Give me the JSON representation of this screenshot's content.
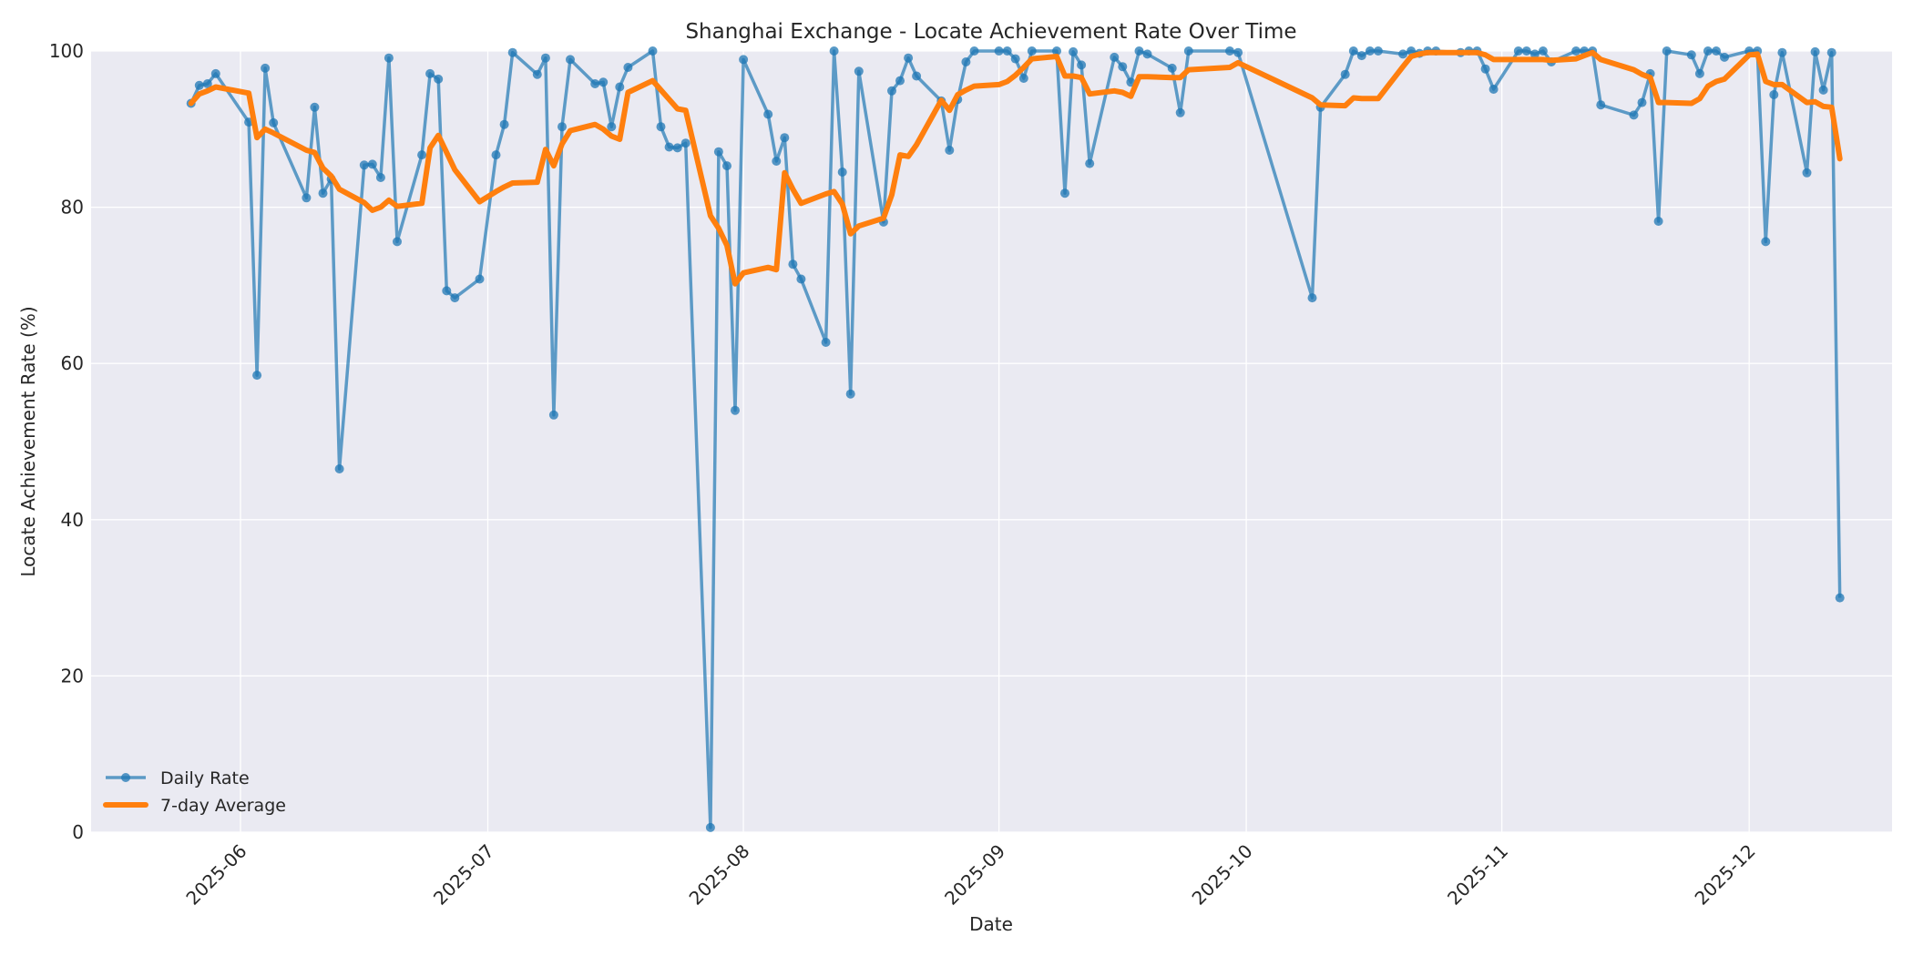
{
  "chart_data": {
    "type": "line",
    "title": "Shanghai Exchange - Locate Achievement Rate Over Time",
    "xlabel": "Date",
    "ylabel": "Locate Achievement Rate (%)",
    "ylim": [
      0,
      100
    ],
    "yticks": [
      0,
      20,
      40,
      60,
      80,
      100
    ],
    "xticks": [
      "2025-06",
      "2025-07",
      "2025-08",
      "2025-09",
      "2025-10",
      "2025-11",
      "2025-12"
    ],
    "grid": true,
    "legend_position": "lower left",
    "colors": {
      "daily": "#1f77b4",
      "avg": "#ff7f0e",
      "plot_bg": "#eaeaf2",
      "grid": "#ffffff"
    },
    "series": [
      {
        "name": "Daily Rate",
        "marker": "circle",
        "points": [
          [
            "2025-05-26",
            93.3
          ],
          [
            "2025-05-27",
            95.6
          ],
          [
            "2025-05-28",
            95.8
          ],
          [
            "2025-05-29",
            97.1
          ],
          [
            "2025-06-02",
            90.9
          ],
          [
            "2025-06-03",
            58.5
          ],
          [
            "2025-06-04",
            97.8
          ],
          [
            "2025-06-05",
            90.8
          ],
          [
            "2025-06-09",
            81.2
          ],
          [
            "2025-06-10",
            92.8
          ],
          [
            "2025-06-11",
            81.8
          ],
          [
            "2025-06-12",
            83.6
          ],
          [
            "2025-06-13",
            46.5
          ],
          [
            "2025-06-16",
            85.4
          ],
          [
            "2025-06-17",
            85.5
          ],
          [
            "2025-06-18",
            83.8
          ],
          [
            "2025-06-19",
            99.1
          ],
          [
            "2025-06-20",
            75.6
          ],
          [
            "2025-06-23",
            86.7
          ],
          [
            "2025-06-24",
            97.1
          ],
          [
            "2025-06-25",
            96.4
          ],
          [
            "2025-06-26",
            69.3
          ],
          [
            "2025-06-27",
            68.4
          ],
          [
            "2025-06-30",
            70.8
          ],
          [
            "2025-07-02",
            86.7
          ],
          [
            "2025-07-03",
            90.6
          ],
          [
            "2025-07-04",
            99.8
          ],
          [
            "2025-07-07",
            97.0
          ],
          [
            "2025-07-08",
            99.1
          ],
          [
            "2025-07-09",
            53.4
          ],
          [
            "2025-07-10",
            90.3
          ],
          [
            "2025-07-11",
            98.9
          ],
          [
            "2025-07-14",
            95.8
          ],
          [
            "2025-07-15",
            96.0
          ],
          [
            "2025-07-16",
            90.3
          ],
          [
            "2025-07-17",
            95.4
          ],
          [
            "2025-07-18",
            97.9
          ],
          [
            "2025-07-21",
            100.0
          ],
          [
            "2025-07-22",
            90.3
          ],
          [
            "2025-07-23",
            87.7
          ],
          [
            "2025-07-24",
            87.6
          ],
          [
            "2025-07-25",
            88.2
          ],
          [
            "2025-07-28",
            0.6
          ],
          [
            "2025-07-29",
            87.1
          ],
          [
            "2025-07-30",
            85.3
          ],
          [
            "2025-07-31",
            54.0
          ],
          [
            "2025-08-01",
            98.9
          ],
          [
            "2025-08-04",
            91.9
          ],
          [
            "2025-08-05",
            85.9
          ],
          [
            "2025-08-06",
            88.9
          ],
          [
            "2025-08-07",
            72.7
          ],
          [
            "2025-08-08",
            70.8
          ],
          [
            "2025-08-11",
            62.7
          ],
          [
            "2025-08-12",
            100.0
          ],
          [
            "2025-08-13",
            84.5
          ],
          [
            "2025-08-14",
            56.1
          ],
          [
            "2025-08-15",
            97.4
          ],
          [
            "2025-08-18",
            78.1
          ],
          [
            "2025-08-19",
            94.9
          ],
          [
            "2025-08-20",
            96.2
          ],
          [
            "2025-08-21",
            99.1
          ],
          [
            "2025-08-22",
            96.8
          ],
          [
            "2025-08-25",
            93.6
          ],
          [
            "2025-08-26",
            87.3
          ],
          [
            "2025-08-27",
            93.8
          ],
          [
            "2025-08-28",
            98.6
          ],
          [
            "2025-08-29",
            100.0
          ],
          [
            "2025-09-01",
            100.0
          ],
          [
            "2025-09-02",
            100.0
          ],
          [
            "2025-09-03",
            99.0
          ],
          [
            "2025-09-04",
            96.5
          ],
          [
            "2025-09-05",
            100.0
          ],
          [
            "2025-09-08",
            100.0
          ],
          [
            "2025-09-09",
            81.8
          ],
          [
            "2025-09-10",
            99.9
          ],
          [
            "2025-09-11",
            98.2
          ],
          [
            "2025-09-12",
            85.6
          ],
          [
            "2025-09-15",
            99.2
          ],
          [
            "2025-09-16",
            98.0
          ],
          [
            "2025-09-17",
            96.0
          ],
          [
            "2025-09-18",
            100.0
          ],
          [
            "2025-09-19",
            99.6
          ],
          [
            "2025-09-22",
            97.8
          ],
          [
            "2025-09-23",
            92.1
          ],
          [
            "2025-09-24",
            100.0
          ],
          [
            "2025-09-29",
            100.0
          ],
          [
            "2025-09-30",
            99.8
          ],
          [
            "2025-10-09",
            68.4
          ],
          [
            "2025-10-10",
            92.8
          ],
          [
            "2025-10-13",
            97.0
          ],
          [
            "2025-10-14",
            100.0
          ],
          [
            "2025-10-15",
            99.4
          ],
          [
            "2025-10-16",
            100.0
          ],
          [
            "2025-10-17",
            100.0
          ],
          [
            "2025-10-20",
            99.6
          ],
          [
            "2025-10-21",
            100.0
          ],
          [
            "2025-10-22",
            99.7
          ],
          [
            "2025-10-23",
            100.0
          ],
          [
            "2025-10-24",
            100.0
          ],
          [
            "2025-10-27",
            99.8
          ],
          [
            "2025-10-28",
            100.0
          ],
          [
            "2025-10-29",
            100.0
          ],
          [
            "2025-10-30",
            97.7
          ],
          [
            "2025-10-31",
            95.1
          ],
          [
            "2025-11-03",
            100.0
          ],
          [
            "2025-11-04",
            100.0
          ],
          [
            "2025-11-05",
            99.6
          ],
          [
            "2025-11-06",
            100.0
          ],
          [
            "2025-11-07",
            98.6
          ],
          [
            "2025-11-10",
            100.0
          ],
          [
            "2025-11-11",
            100.0
          ],
          [
            "2025-11-12",
            100.0
          ],
          [
            "2025-11-13",
            93.1
          ],
          [
            "2025-11-17",
            91.8
          ],
          [
            "2025-11-18",
            93.4
          ],
          [
            "2025-11-19",
            97.1
          ],
          [
            "2025-11-20",
            78.2
          ],
          [
            "2025-11-21",
            100.0
          ],
          [
            "2025-11-24",
            99.5
          ],
          [
            "2025-11-25",
            97.1
          ],
          [
            "2025-11-26",
            100.0
          ],
          [
            "2025-11-27",
            100.0
          ],
          [
            "2025-11-28",
            99.2
          ],
          [
            "2025-12-01",
            100.0
          ],
          [
            "2025-12-02",
            100.0
          ],
          [
            "2025-12-03",
            75.6
          ],
          [
            "2025-12-04",
            94.4
          ],
          [
            "2025-12-05",
            99.8
          ],
          [
            "2025-12-08",
            84.4
          ],
          [
            "2025-12-09",
            99.9
          ],
          [
            "2025-12-10",
            95.0
          ],
          [
            "2025-12-11",
            99.8
          ],
          [
            "2025-12-12",
            30.0
          ]
        ]
      },
      {
        "name": "7-day Average",
        "marker": "none",
        "points": [
          [
            "2025-05-26",
            93.3
          ],
          [
            "2025-05-27",
            94.5
          ],
          [
            "2025-05-28",
            94.9
          ],
          [
            "2025-05-29",
            95.4
          ],
          [
            "2025-06-02",
            94.6
          ],
          [
            "2025-06-03",
            88.9
          ],
          [
            "2025-06-04",
            90.0
          ],
          [
            "2025-06-05",
            89.5
          ],
          [
            "2025-06-09",
            87.3
          ],
          [
            "2025-06-10",
            87.0
          ],
          [
            "2025-06-11",
            85.0
          ],
          [
            "2025-06-12",
            84.0
          ],
          [
            "2025-06-13",
            82.3
          ],
          [
            "2025-06-16",
            80.6
          ],
          [
            "2025-06-17",
            79.6
          ],
          [
            "2025-06-18",
            80.0
          ],
          [
            "2025-06-19",
            80.9
          ],
          [
            "2025-06-20",
            80.1
          ],
          [
            "2025-06-23",
            80.5
          ],
          [
            "2025-06-24",
            87.6
          ],
          [
            "2025-06-25",
            89.2
          ],
          [
            "2025-06-26",
            87.0
          ],
          [
            "2025-06-27",
            84.8
          ],
          [
            "2025-06-30",
            80.7
          ],
          [
            "2025-07-02",
            82.0
          ],
          [
            "2025-07-03",
            82.6
          ],
          [
            "2025-07-04",
            83.1
          ],
          [
            "2025-07-07",
            83.2
          ],
          [
            "2025-07-08",
            87.4
          ],
          [
            "2025-07-09",
            85.3
          ],
          [
            "2025-07-10",
            88.1
          ],
          [
            "2025-07-11",
            89.8
          ],
          [
            "2025-07-14",
            90.6
          ],
          [
            "2025-07-15",
            90.0
          ],
          [
            "2025-07-16",
            89.1
          ],
          [
            "2025-07-17",
            88.7
          ],
          [
            "2025-07-18",
            94.7
          ],
          [
            "2025-07-21",
            96.2
          ],
          [
            "2025-07-22",
            95.0
          ],
          [
            "2025-07-23",
            93.8
          ],
          [
            "2025-07-24",
            92.6
          ],
          [
            "2025-07-25",
            92.4
          ],
          [
            "2025-07-28",
            78.9
          ],
          [
            "2025-07-29",
            77.3
          ],
          [
            "2025-07-30",
            75.1
          ],
          [
            "2025-07-31",
            70.2
          ],
          [
            "2025-08-01",
            71.6
          ],
          [
            "2025-08-04",
            72.3
          ],
          [
            "2025-08-05",
            72.0
          ],
          [
            "2025-08-06",
            84.4
          ],
          [
            "2025-08-07",
            82.3
          ],
          [
            "2025-08-08",
            80.5
          ],
          [
            "2025-08-11",
            81.7
          ],
          [
            "2025-08-12",
            82.0
          ],
          [
            "2025-08-13",
            80.4
          ],
          [
            "2025-08-14",
            76.6
          ],
          [
            "2025-08-15",
            77.6
          ],
          [
            "2025-08-18",
            78.6
          ],
          [
            "2025-08-19",
            81.6
          ],
          [
            "2025-08-20",
            86.7
          ],
          [
            "2025-08-21",
            86.5
          ],
          [
            "2025-08-22",
            88.0
          ],
          [
            "2025-08-25",
            93.7
          ],
          [
            "2025-08-26",
            92.4
          ],
          [
            "2025-08-27",
            94.4
          ],
          [
            "2025-08-28",
            95.0
          ],
          [
            "2025-08-29",
            95.5
          ],
          [
            "2025-09-01",
            95.7
          ],
          [
            "2025-09-02",
            96.1
          ],
          [
            "2025-09-03",
            96.9
          ],
          [
            "2025-09-04",
            97.9
          ],
          [
            "2025-09-05",
            99.0
          ],
          [
            "2025-09-08",
            99.3
          ],
          [
            "2025-09-09",
            96.8
          ],
          [
            "2025-09-10",
            96.8
          ],
          [
            "2025-09-11",
            96.6
          ],
          [
            "2025-09-12",
            94.5
          ],
          [
            "2025-09-15",
            94.9
          ],
          [
            "2025-09-16",
            94.7
          ],
          [
            "2025-09-17",
            94.2
          ],
          [
            "2025-09-18",
            96.7
          ],
          [
            "2025-09-19",
            96.7
          ],
          [
            "2025-09-22",
            96.6
          ],
          [
            "2025-09-23",
            96.6
          ],
          [
            "2025-09-24",
            97.6
          ],
          [
            "2025-09-29",
            97.9
          ],
          [
            "2025-09-30",
            98.5
          ],
          [
            "2025-10-09",
            94.0
          ],
          [
            "2025-10-10",
            93.1
          ],
          [
            "2025-10-13",
            93.0
          ],
          [
            "2025-10-14",
            94.0
          ],
          [
            "2025-10-15",
            93.9
          ],
          [
            "2025-10-16",
            93.9
          ],
          [
            "2025-10-17",
            93.9
          ],
          [
            "2025-10-20",
            98.0
          ],
          [
            "2025-10-21",
            99.3
          ],
          [
            "2025-10-22",
            99.6
          ],
          [
            "2025-10-23",
            99.8
          ],
          [
            "2025-10-24",
            99.8
          ],
          [
            "2025-10-27",
            99.8
          ],
          [
            "2025-10-28",
            99.8
          ],
          [
            "2025-10-29",
            99.8
          ],
          [
            "2025-10-30",
            99.5
          ],
          [
            "2025-10-31",
            98.9
          ],
          [
            "2025-11-03",
            98.9
          ],
          [
            "2025-11-04",
            98.9
          ],
          [
            "2025-11-05",
            98.9
          ],
          [
            "2025-11-06",
            98.9
          ],
          [
            "2025-11-07",
            98.8
          ],
          [
            "2025-11-10",
            99.0
          ],
          [
            "2025-11-11",
            99.4
          ],
          [
            "2025-11-12",
            99.8
          ],
          [
            "2025-11-13",
            98.9
          ],
          [
            "2025-11-17",
            97.6
          ],
          [
            "2025-11-18",
            97.0
          ],
          [
            "2025-11-19",
            96.6
          ],
          [
            "2025-11-20",
            93.4
          ],
          [
            "2025-11-21",
            93.4
          ],
          [
            "2025-11-24",
            93.3
          ],
          [
            "2025-11-25",
            93.9
          ],
          [
            "2025-11-26",
            95.5
          ],
          [
            "2025-11-27",
            96.1
          ],
          [
            "2025-11-28",
            96.4
          ],
          [
            "2025-12-01",
            99.5
          ],
          [
            "2025-12-02",
            99.6
          ],
          [
            "2025-12-03",
            96.1
          ],
          [
            "2025-12-04",
            95.7
          ],
          [
            "2025-12-05",
            95.7
          ],
          [
            "2025-12-08",
            93.4
          ],
          [
            "2025-12-09",
            93.5
          ],
          [
            "2025-12-10",
            92.9
          ],
          [
            "2025-12-11",
            92.8
          ],
          [
            "2025-12-12",
            86.2
          ]
        ]
      }
    ]
  },
  "legend": {
    "items": [
      {
        "label": "Daily Rate"
      },
      {
        "label": "7-day Average"
      }
    ]
  }
}
